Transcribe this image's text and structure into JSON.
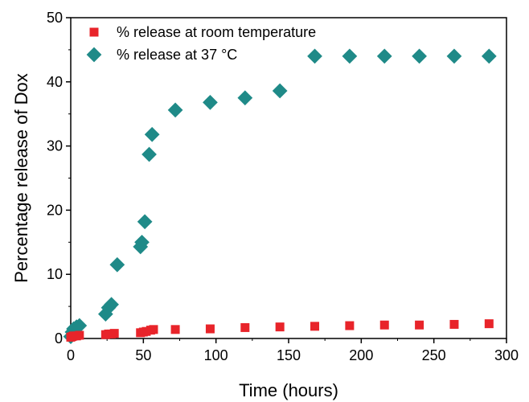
{
  "chart_data": {
    "type": "scatter",
    "xlabel": "Time (hours)",
    "ylabel": "Percentage release of Dox",
    "xlim": [
      0,
      300
    ],
    "ylim": [
      0,
      50
    ],
    "xticks": [
      0,
      50,
      100,
      150,
      200,
      250,
      300
    ],
    "yticks": [
      0,
      10,
      20,
      30,
      40,
      50
    ],
    "grid": false,
    "legend_position": "top-left",
    "series": [
      {
        "name": "% release at room temperature",
        "marker": "square",
        "color": "#e8242a",
        "points": [
          [
            0,
            0.2
          ],
          [
            1,
            0.3
          ],
          [
            2,
            0.4
          ],
          [
            4,
            0.4
          ],
          [
            6,
            0.5
          ],
          [
            24,
            0.6
          ],
          [
            26,
            0.7
          ],
          [
            28,
            0.7
          ],
          [
            30,
            0.8
          ],
          [
            48,
            0.9
          ],
          [
            50,
            1.0
          ],
          [
            52,
            1.1
          ],
          [
            55,
            1.3
          ],
          [
            57,
            1.4
          ],
          [
            72,
            1.4
          ],
          [
            96,
            1.5
          ],
          [
            120,
            1.7
          ],
          [
            144,
            1.8
          ],
          [
            168,
            1.9
          ],
          [
            192,
            2.0
          ],
          [
            216,
            2.1
          ],
          [
            240,
            2.1
          ],
          [
            264,
            2.2
          ],
          [
            288,
            2.3
          ]
        ]
      },
      {
        "name": "% release at 37 °C",
        "marker": "diamond",
        "color": "#1f8a88",
        "points": [
          [
            0,
            0.3
          ],
          [
            1,
            1.0
          ],
          [
            2,
            1.5
          ],
          [
            4,
            1.8
          ],
          [
            6,
            2.0
          ],
          [
            24,
            3.8
          ],
          [
            26,
            4.8
          ],
          [
            28,
            5.3
          ],
          [
            32,
            11.5
          ],
          [
            48,
            14.3
          ],
          [
            49,
            15.0
          ],
          [
            51,
            18.2
          ],
          [
            54,
            28.7
          ],
          [
            56,
            31.8
          ],
          [
            72,
            35.6
          ],
          [
            96,
            36.8
          ],
          [
            120,
            37.5
          ],
          [
            144,
            38.6
          ],
          [
            168,
            44.0
          ],
          [
            192,
            44.0
          ],
          [
            216,
            44.0
          ],
          [
            240,
            44.0
          ],
          [
            264,
            44.0
          ],
          [
            288,
            44.0
          ]
        ]
      }
    ]
  }
}
